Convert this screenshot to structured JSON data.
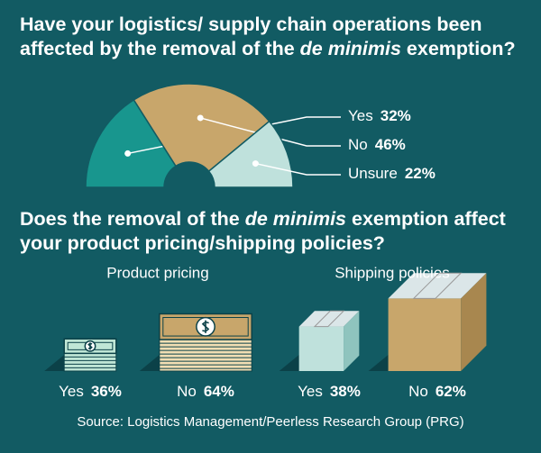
{
  "title_parts": [
    "Have your logistics/ supply chain operations been affected by the removal of the ",
    "de minimis",
    " exemption?"
  ],
  "section_title_parts": [
    "Does the removal of the ",
    "de minimis",
    " exemption affect your product pricing/shipping policies?"
  ],
  "source": "Source: Logistics Management/Peerless Research Group (PRG)",
  "chart_data": [
    {
      "type": "pie",
      "categories": [
        "Yes",
        "No",
        "Unsure"
      ],
      "values": [
        32,
        46,
        22
      ],
      "value_labels": [
        "32%",
        "46%",
        "22%"
      ],
      "colors": [
        "#18968e",
        "#c8a66b",
        "#bfe1dc"
      ]
    },
    {
      "type": "bills",
      "title": "Product pricing",
      "categories": [
        "Yes",
        "No"
      ],
      "values": [
        36,
        64
      ],
      "value_labels": [
        "36%",
        "64%"
      ],
      "colors": [
        "#bfe6d6",
        "#c8a66b"
      ]
    },
    {
      "type": "boxes",
      "title": "Shipping policies",
      "categories": [
        "Yes",
        "No"
      ],
      "values": [
        38,
        62
      ],
      "value_labels": [
        "38%",
        "62%"
      ],
      "colors": [
        "#bfe1dc",
        "#c8a66b"
      ]
    }
  ]
}
